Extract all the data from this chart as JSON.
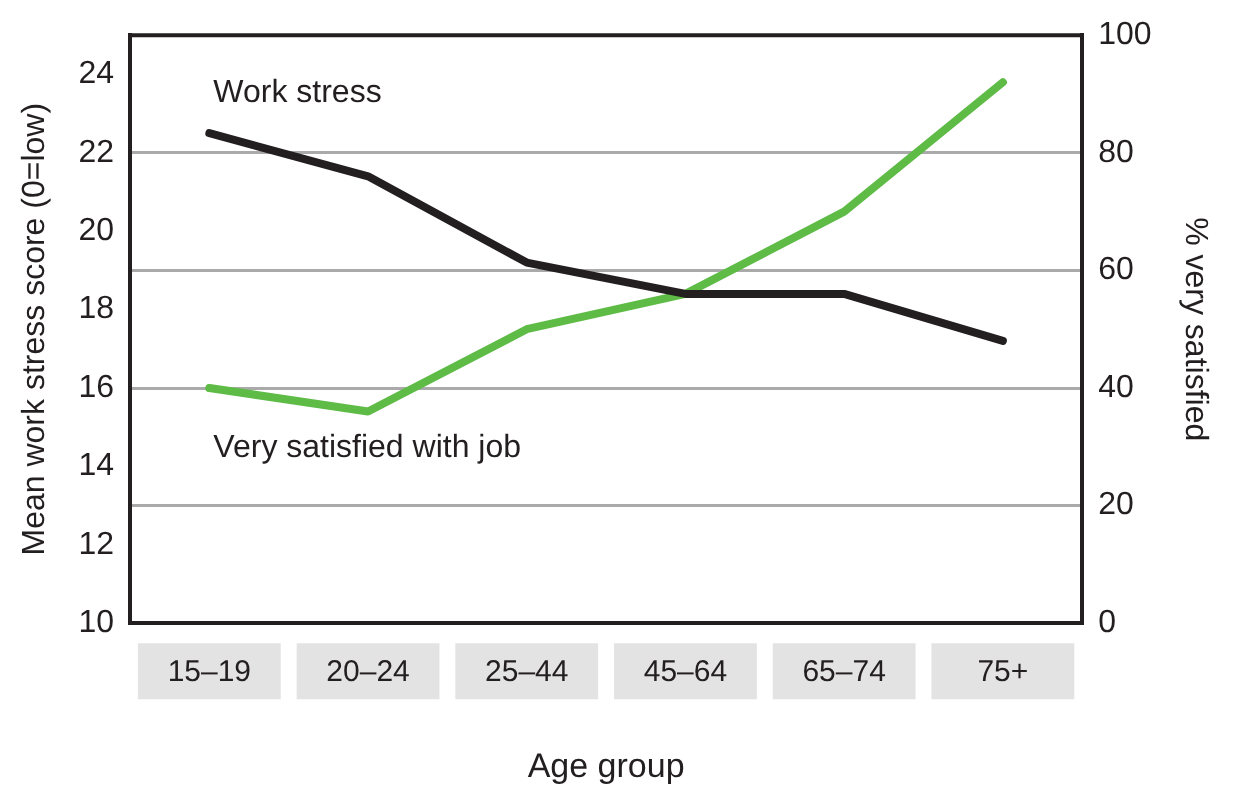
{
  "chart_data": {
    "type": "line",
    "xlabel": "Age group",
    "ylabel": "Mean work stress score (0=low)",
    "y2label": "% very satisfied",
    "categories": [
      "15–19",
      "20–24",
      "25–44",
      "45–64",
      "65–74",
      "75+"
    ],
    "series": [
      {
        "name": "Work stress",
        "color": "#231f20",
        "values": [
          22.5,
          21.4,
          19.2,
          18.4,
          18.4,
          17.2
        ]
      },
      {
        "name": "Very satisfied with job",
        "color": "#5dbb46",
        "axis": "y2",
        "values": [
          40,
          36,
          50,
          56,
          70,
          92
        ]
      }
    ],
    "ylim": [
      10,
      25
    ],
    "yticks": [
      10,
      12,
      14,
      16,
      18,
      20,
      22,
      24
    ],
    "y2lim": [
      0,
      100
    ],
    "y2ticks": [
      0,
      20,
      40,
      60,
      80,
      100
    ],
    "grid": "y2",
    "legend": false,
    "marker": "none",
    "line_style": "solid"
  }
}
